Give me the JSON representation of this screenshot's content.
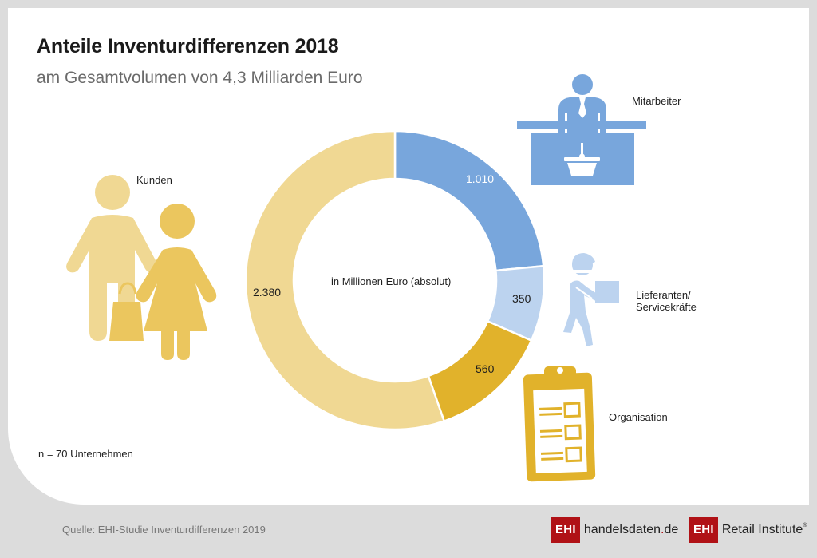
{
  "header": {
    "title": "Anteile Inventurdifferenzen 2018",
    "subtitle": "am Gesamtvolumen von 4,3 Milliarden Euro"
  },
  "center_label": "in Millionen Euro (absolut)",
  "categories": {
    "mitarbeiter": "Mitarbeiter",
    "lieferanten_line1": "Lieferanten/",
    "lieferanten_line2": "Servicekräfte",
    "organisation": "Organisation",
    "kunden": "Kunden"
  },
  "values_display": {
    "mitarbeiter": "1.010",
    "lieferanten": "350",
    "organisation": "560",
    "kunden": "2.380"
  },
  "footnote": "n = 70 Unternehmen",
  "footer": {
    "source": "Quelle: EHI-Studie Inventurdifferenzen 2019",
    "logo1_box": "EHI",
    "logo1_text_a": "handelsdaten",
    "logo1_dot": ".",
    "logo1_text_b": "de",
    "logo2_box": "EHI",
    "logo2_text": "Retail Institute",
    "logo2_reg": "®"
  },
  "colors": {
    "mitarbeiter": "#78a6dc",
    "lieferanten": "#bcd3ef",
    "organisation": "#e1b22b",
    "kunden": "#f0d893",
    "kunden_woman": "#ebc65e",
    "brand_red": "#b01116"
  },
  "chart_data": {
    "type": "pie",
    "variant": "donut",
    "title": "Anteile Inventurdifferenzen 2018",
    "subtitle": "am Gesamtvolumen von 4,3 Milliarden Euro",
    "unit": "in Millionen Euro (absolut)",
    "categories": [
      "Mitarbeiter",
      "Lieferanten/Servicekräfte",
      "Organisation",
      "Kunden"
    ],
    "values": [
      1010,
      350,
      560,
      2380
    ],
    "total": 4300,
    "start_angle": "12 o'clock, clockwise",
    "colors": [
      "#78a6dc",
      "#bcd3ef",
      "#e1b22b",
      "#f0d893"
    ],
    "note": "n = 70 Unternehmen",
    "source": "Quelle: EHI-Studie Inventurdifferenzen 2019"
  }
}
